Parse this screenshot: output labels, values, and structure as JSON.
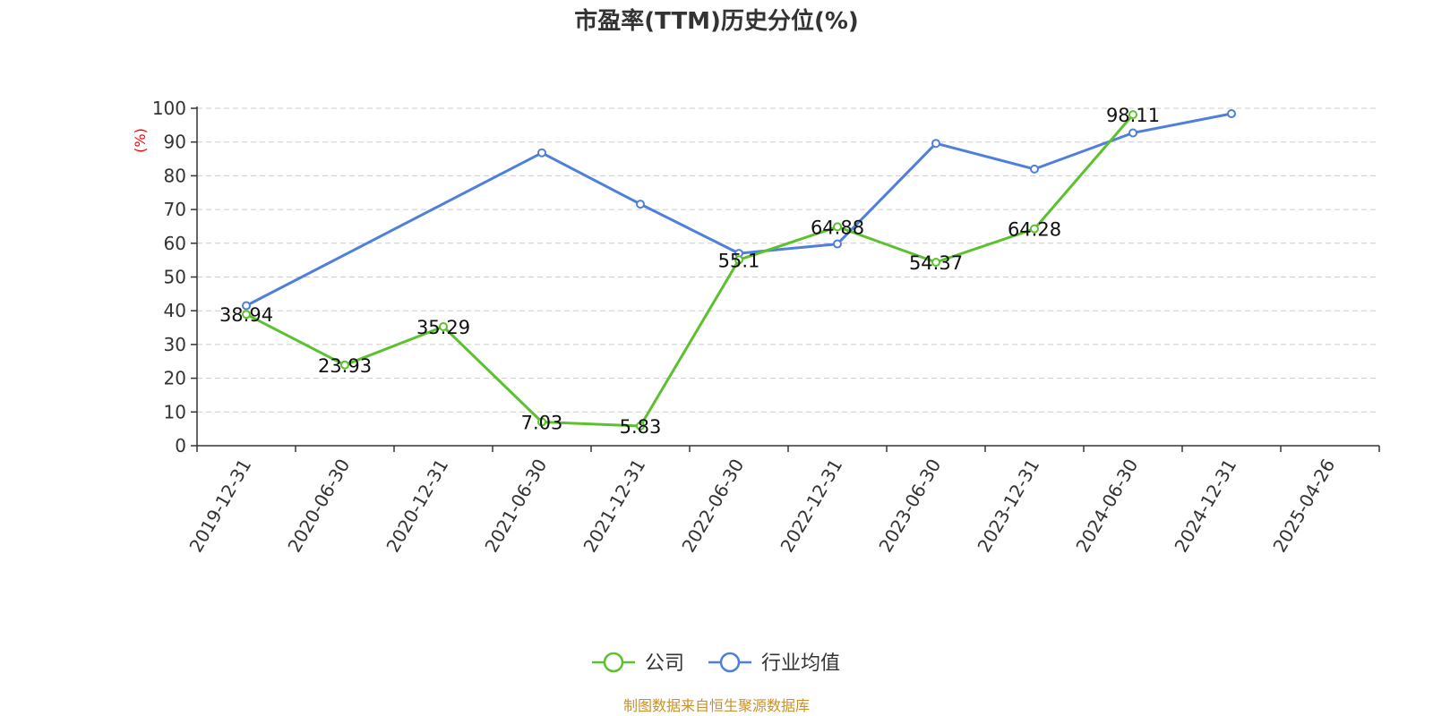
{
  "chart_data": {
    "type": "line",
    "title": "市盈率(TTM)历史分位(%)",
    "ylabel": "(%)",
    "xlabel": "",
    "ylim": [
      0,
      100
    ],
    "yticks": [
      0,
      10,
      20,
      30,
      40,
      50,
      60,
      70,
      80,
      90,
      100
    ],
    "categories": [
      "2019-12-31",
      "2020-06-30",
      "2020-12-31",
      "2021-06-30",
      "2021-12-31",
      "2022-06-30",
      "2022-12-31",
      "2023-06-30",
      "2023-12-31",
      "2024-06-30",
      "2024-12-31",
      "2025-04-26"
    ],
    "grid": true,
    "legend_position": "bottom",
    "series": [
      {
        "name": "公司",
        "color": "#5cc12e",
        "values": [
          38.94,
          23.93,
          35.29,
          7.03,
          5.83,
          55.1,
          64.88,
          54.37,
          64.28,
          98.11,
          null,
          null
        ],
        "labels": [
          "38.94",
          "23.93",
          "35.29",
          "7.03",
          "5.83",
          "55.1",
          "64.88",
          "54.37",
          "64.28",
          "98.11",
          null,
          null
        ]
      },
      {
        "name": "行业均值",
        "color": "#4f7fdb",
        "values": [
          41.5,
          null,
          null,
          86.8,
          71.6,
          57.0,
          59.8,
          89.6,
          82.0,
          92.7,
          98.4,
          null
        ]
      }
    ]
  },
  "footer": {
    "source": "制图数据来自恒生聚源数据库"
  }
}
